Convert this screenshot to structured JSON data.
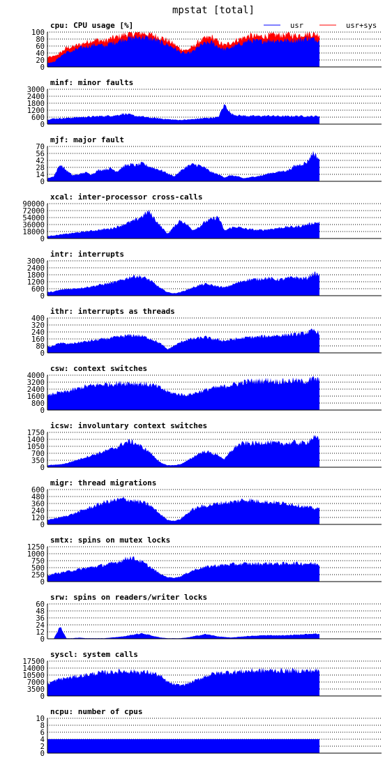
{
  "page_title": "mpstat [total]",
  "colors": {
    "usr": "#0000ff",
    "sys": "#ff0000",
    "grid": "#000000",
    "background": "#ffffff"
  },
  "chart_data": [
    {
      "id": "cpu",
      "type": "area",
      "title": "cpu: CPU usage [%]",
      "yticks": [
        0,
        20,
        40,
        60,
        80,
        100
      ],
      "ylim": [
        0,
        100
      ],
      "grid": true,
      "legend_position": "top-right",
      "series": [
        {
          "name": "usr",
          "color": "#0000ff",
          "approx_values": [
            12,
            14,
            30,
            42,
            45,
            54,
            58,
            62,
            64,
            60,
            68,
            72,
            80,
            82,
            84,
            86,
            82,
            78,
            70,
            64,
            55,
            42,
            38,
            44,
            60,
            68,
            70,
            58,
            50,
            56,
            62,
            70,
            76,
            74,
            74,
            76,
            76,
            76,
            76,
            76,
            78,
            82,
            80,
            78
          ]
        },
        {
          "name": "usr+sys",
          "color": "#ff0000",
          "approx_values": [
            28,
            30,
            40,
            55,
            58,
            64,
            70,
            76,
            78,
            74,
            82,
            86,
            92,
            96,
            96,
            98,
            94,
            90,
            84,
            76,
            66,
            52,
            48,
            58,
            74,
            82,
            86,
            72,
            62,
            70,
            78,
            84,
            90,
            88,
            88,
            90,
            92,
            92,
            94,
            90,
            92,
            96,
            94,
            94
          ]
        }
      ]
    },
    {
      "id": "minf",
      "type": "area",
      "title": "minf: minor faults",
      "yticks": [
        0,
        600,
        1200,
        1800,
        2400,
        3000
      ],
      "ylim": [
        0,
        3000
      ],
      "grid": true,
      "series": [
        {
          "name": "usr",
          "color": "#0000ff",
          "approx_values": [
            400,
            480,
            500,
            520,
            560,
            600,
            620,
            640,
            680,
            700,
            720,
            760,
            900,
            820,
            700,
            650,
            560,
            520,
            480,
            420,
            380,
            360,
            380,
            420,
            480,
            520,
            560,
            600,
            1700,
            900,
            760,
            720,
            700,
            700,
            700,
            720,
            700,
            680,
            680,
            700,
            700,
            680,
            680,
            700
          ]
        }
      ]
    },
    {
      "id": "mjf",
      "type": "area",
      "title": "mjf: major fault",
      "yticks": [
        0,
        14,
        28,
        42,
        56,
        70
      ],
      "ylim": [
        0,
        70
      ],
      "grid": true,
      "series": [
        {
          "name": "usr",
          "color": "#0000ff",
          "approx_values": [
            6,
            10,
            34,
            22,
            12,
            14,
            18,
            14,
            22,
            24,
            26,
            20,
            30,
            34,
            32,
            36,
            30,
            26,
            22,
            16,
            10,
            20,
            30,
            34,
            32,
            26,
            18,
            14,
            8,
            12,
            10,
            6,
            8,
            10,
            12,
            16,
            18,
            20,
            22,
            30,
            34,
            38,
            58,
            44
          ]
        }
      ]
    },
    {
      "id": "xcal",
      "type": "area",
      "title": "xcal: inter-processor cross-calls",
      "yticks": [
        0,
        18000,
        36000,
        54000,
        72000,
        90000
      ],
      "ylim": [
        0,
        90000
      ],
      "grid": true,
      "series": [
        {
          "name": "usr",
          "color": "#0000ff",
          "approx_values": [
            6000,
            8000,
            10000,
            12000,
            14000,
            16000,
            18000,
            20000,
            22000,
            24000,
            26000,
            30000,
            36000,
            42000,
            48000,
            58000,
            70000,
            50000,
            30000,
            12000,
            30000,
            48000,
            36000,
            22000,
            30000,
            44000,
            50000,
            56000,
            20000,
            28000,
            30000,
            26000,
            24000,
            22000,
            22000,
            24000,
            26000,
            28000,
            30000,
            30000,
            32000,
            36000,
            40000,
            42000
          ]
        }
      ]
    },
    {
      "id": "intr",
      "type": "area",
      "title": "intr: interrupts",
      "yticks": [
        0,
        600,
        1200,
        1800,
        2400,
        3000
      ],
      "ylim": [
        0,
        3000
      ],
      "grid": true,
      "series": [
        {
          "name": "usr",
          "color": "#0000ff",
          "approx_values": [
            300,
            350,
            500,
            560,
            600,
            660,
            720,
            800,
            900,
            1000,
            1100,
            1200,
            1400,
            1600,
            1700,
            1600,
            1400,
            1000,
            600,
            300,
            200,
            300,
            500,
            700,
            900,
            1000,
            900,
            800,
            700,
            900,
            1100,
            1300,
            1400,
            1400,
            1500,
            1500,
            1400,
            1400,
            1500,
            1600,
            1500,
            1500,
            1900,
            1800
          ]
        }
      ]
    },
    {
      "id": "ithr",
      "type": "area",
      "title": "ithr: interrupts as threads",
      "yticks": [
        0,
        80,
        160,
        240,
        320,
        400
      ],
      "ylim": [
        0,
        400
      ],
      "grid": true,
      "series": [
        {
          "name": "usr",
          "color": "#0000ff",
          "approx_values": [
            70,
            80,
            120,
            100,
            110,
            120,
            130,
            140,
            150,
            160,
            170,
            180,
            190,
            200,
            200,
            190,
            170,
            140,
            100,
            40,
            80,
            120,
            150,
            160,
            170,
            180,
            160,
            150,
            140,
            150,
            160,
            170,
            180,
            180,
            190,
            190,
            200,
            200,
            210,
            210,
            220,
            230,
            260,
            230
          ]
        }
      ]
    },
    {
      "id": "csw",
      "type": "area",
      "title": "csw: context switches",
      "yticks": [
        0,
        800,
        1600,
        2400,
        3200,
        4000
      ],
      "ylim": [
        0,
        4000
      ],
      "grid": true,
      "series": [
        {
          "name": "usr",
          "color": "#0000ff",
          "approx_values": [
            1600,
            1900,
            2000,
            2100,
            2300,
            2500,
            2700,
            2800,
            2900,
            2950,
            3000,
            3050,
            3100,
            3100,
            3050,
            3000,
            2900,
            2800,
            2500,
            2100,
            1900,
            1800,
            1700,
            1900,
            2100,
            2300,
            2500,
            2600,
            2700,
            2900,
            3000,
            3200,
            3300,
            3300,
            3400,
            3400,
            3300,
            3300,
            3300,
            3400,
            3300,
            3300,
            3600,
            3400
          ]
        }
      ]
    },
    {
      "id": "icsw",
      "type": "area",
      "title": "icsw: involuntary context switches",
      "yticks": [
        0,
        350,
        700,
        1050,
        1400,
        1750
      ],
      "ylim": [
        0,
        1750
      ],
      "grid": true,
      "series": [
        {
          "name": "usr",
          "color": "#0000ff",
          "approx_values": [
            100,
            120,
            140,
            200,
            300,
            400,
            500,
            600,
            700,
            800,
            900,
            1000,
            1200,
            1300,
            1200,
            1000,
            800,
            500,
            200,
            100,
            100,
            150,
            300,
            500,
            700,
            800,
            700,
            600,
            400,
            800,
            1100,
            1200,
            1200,
            1200,
            1250,
            1250,
            1200,
            1200,
            1200,
            1250,
            1200,
            1250,
            1500,
            1400
          ]
        }
      ]
    },
    {
      "id": "migr",
      "type": "area",
      "title": "migr: thread migrations",
      "yticks": [
        0,
        120,
        240,
        360,
        480,
        600
      ],
      "ylim": [
        0,
        600
      ],
      "grid": true,
      "series": [
        {
          "name": "usr",
          "color": "#0000ff",
          "approx_values": [
            80,
            100,
            120,
            150,
            180,
            220,
            260,
            300,
            340,
            380,
            400,
            420,
            440,
            420,
            400,
            380,
            340,
            260,
            160,
            80,
            60,
            90,
            180,
            260,
            300,
            320,
            340,
            360,
            380,
            380,
            400,
            420,
            420,
            400,
            400,
            380,
            380,
            360,
            360,
            340,
            320,
            300,
            280,
            270
          ]
        }
      ]
    },
    {
      "id": "smtx",
      "type": "area",
      "title": "smtx: spins on mutex locks",
      "yticks": [
        0,
        250,
        500,
        750,
        1000,
        1250
      ],
      "ylim": [
        0,
        1250
      ],
      "grid": true,
      "series": [
        {
          "name": "usr",
          "color": "#0000ff",
          "approx_values": [
            220,
            280,
            320,
            360,
            400,
            440,
            480,
            520,
            560,
            600,
            640,
            700,
            780,
            880,
            800,
            700,
            560,
            400,
            250,
            160,
            140,
            180,
            300,
            400,
            480,
            520,
            560,
            580,
            600,
            620,
            620,
            640,
            640,
            640,
            640,
            660,
            640,
            640,
            650,
            660,
            650,
            650,
            640,
            620
          ]
        }
      ]
    },
    {
      "id": "srw",
      "type": "area",
      "title": "srw: spins on readers/writer locks",
      "yticks": [
        0,
        12,
        24,
        36,
        48,
        60
      ],
      "ylim": [
        0,
        60
      ],
      "grid": true,
      "series": [
        {
          "name": "usr",
          "color": "#0000ff",
          "approx_values": [
            0,
            0,
            22,
            1,
            1,
            2,
            1,
            1,
            1,
            1,
            2,
            3,
            4,
            6,
            8,
            9,
            7,
            4,
            2,
            1,
            1,
            1,
            2,
            4,
            6,
            8,
            6,
            4,
            3,
            2,
            3,
            4,
            5,
            5,
            6,
            6,
            6,
            6,
            6,
            7,
            7,
            8,
            9,
            8
          ]
        }
      ]
    },
    {
      "id": "syscl",
      "type": "area",
      "title": "syscl: system calls",
      "yticks": [
        0,
        3500,
        7000,
        10500,
        14000,
        17500
      ],
      "ylim": [
        0,
        17500
      ],
      "grid": true,
      "series": [
        {
          "name": "usr",
          "color": "#0000ff",
          "approx_values": [
            6000,
            7500,
            8500,
            9000,
            9500,
            10000,
            10500,
            11000,
            11500,
            11800,
            12000,
            12200,
            12400,
            12400,
            12200,
            12000,
            11800,
            11200,
            9500,
            7000,
            5800,
            5400,
            6000,
            7200,
            8500,
            10000,
            11000,
            11500,
            11800,
            12000,
            12200,
            12400,
            12600,
            12600,
            12800,
            12800,
            12700,
            12600,
            12600,
            12700,
            12600,
            12600,
            12800,
            12600
          ]
        }
      ]
    },
    {
      "id": "ncpu",
      "type": "area",
      "title": "ncpu: number of cpus",
      "yticks": [
        0,
        2,
        4,
        6,
        8,
        10
      ],
      "ylim": [
        0,
        10
      ],
      "grid": true,
      "series": [
        {
          "name": "usr",
          "color": "#0000ff",
          "approx_values": [
            4,
            4,
            4,
            4,
            4,
            4,
            4,
            4,
            4,
            4,
            4,
            4,
            4,
            4,
            4,
            4,
            4,
            4,
            4,
            4,
            4,
            4,
            4,
            4,
            4,
            4,
            4,
            4,
            4,
            4,
            4,
            4,
            4,
            4,
            4,
            4,
            4,
            4,
            4,
            4,
            4,
            4,
            4,
            4
          ]
        }
      ]
    }
  ]
}
